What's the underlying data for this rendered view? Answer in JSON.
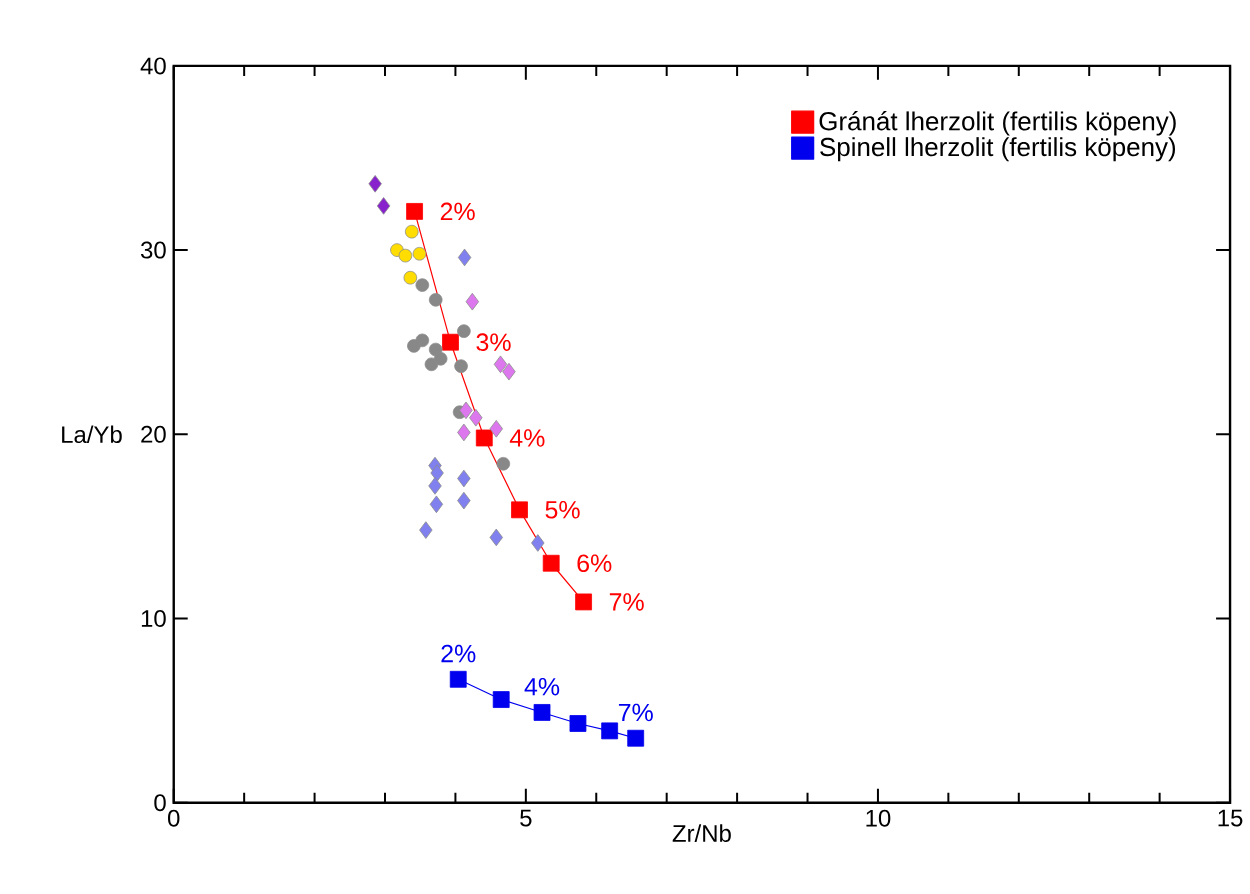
{
  "chart_data": {
    "type": "scatter",
    "xlabel": "Zr/Nb",
    "ylabel": "La/Yb",
    "xlim": [
      0,
      15
    ],
    "ylim": [
      0,
      40
    ],
    "xticks": [
      0,
      5,
      10,
      15
    ],
    "yticks": [
      0,
      10,
      20,
      30,
      40
    ],
    "grid": false,
    "legend": "top right",
    "series": [
      {
        "name": "Gránát lherzolit (fertilis köpeny)",
        "type": "line",
        "marker": "square",
        "color": "#ff0000",
        "x": [
          3.42,
          3.93,
          4.41,
          4.91,
          5.36,
          5.82
        ],
        "values": [
          32.1,
          25.0,
          19.8,
          15.9,
          13.0,
          10.9
        ]
      },
      {
        "name": "Spinell lherzolit (fertilis köpeny)",
        "type": "line",
        "marker": "square",
        "color": "#0000ee",
        "x": [
          4.04,
          4.65,
          5.23,
          5.74,
          6.19,
          6.56
        ],
        "values": [
          6.7,
          5.6,
          4.9,
          4.3,
          3.9,
          3.5
        ]
      },
      {
        "marker": "diamond",
        "color": "#8822cc",
        "x": [
          2.86,
          2.98
        ],
        "values": [
          33.6,
          32.4
        ]
      },
      {
        "marker": "circle",
        "color": "#ffdd00",
        "x": [
          3.38,
          3.17,
          3.29,
          3.49,
          3.36
        ],
        "values": [
          31.0,
          30.0,
          29.7,
          29.8,
          28.5
        ]
      },
      {
        "marker": "circle",
        "color": "#888888",
        "x": [
          3.53,
          3.72,
          3.53,
          3.41,
          3.72,
          3.66,
          3.79,
          4.12,
          4.08,
          4.06,
          4.68
        ],
        "values": [
          28.1,
          27.3,
          25.1,
          24.8,
          24.6,
          23.8,
          24.1,
          25.6,
          23.7,
          21.2,
          18.4
        ]
      },
      {
        "marker": "diamond",
        "color": "#dd77ee",
        "x": [
          4.24,
          4.64,
          4.76,
          4.15,
          4.29,
          4.12,
          4.58
        ],
        "values": [
          27.2,
          23.8,
          23.4,
          21.3,
          20.9,
          20.1,
          20.3
        ]
      },
      {
        "marker": "diamond",
        "color": "#8080ee",
        "x": [
          4.13,
          3.71,
          3.74,
          3.71,
          3.73,
          3.58,
          4.12,
          4.12,
          4.58,
          5.17
        ],
        "values": [
          29.6,
          18.3,
          17.9,
          17.2,
          16.2,
          14.8,
          17.6,
          16.4,
          14.4,
          14.1
        ]
      }
    ],
    "annotations": [
      {
        "text": "2%",
        "x": 3.42,
        "y": 32.1
      },
      {
        "text": "3%",
        "x": 3.93,
        "y": 25.0
      },
      {
        "text": "4%",
        "x": 4.41,
        "y": 19.8
      },
      {
        "text": "5%",
        "x": 4.91,
        "y": 15.9
      },
      {
        "text": "6%",
        "x": 5.36,
        "y": 13.0
      },
      {
        "text": "7%",
        "x": 5.82,
        "y": 10.9
      },
      {
        "text": "2%",
        "x": 4.04,
        "y": 6.7
      },
      {
        "text": "4%",
        "x": 5.23,
        "y": 4.9
      },
      {
        "text": "7%",
        "x": 6.56,
        "y": 3.5
      }
    ]
  }
}
